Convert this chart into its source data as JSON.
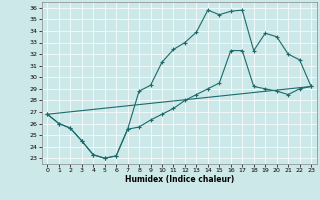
{
  "xlabel": "Humidex (Indice chaleur)",
  "bg_color": "#cde8e8",
  "line_color": "#1a6b6b",
  "xlim": [
    -0.5,
    23.5
  ],
  "ylim": [
    22.5,
    36.5
  ],
  "xticks": [
    0,
    1,
    2,
    3,
    4,
    5,
    6,
    7,
    8,
    9,
    10,
    11,
    12,
    13,
    14,
    15,
    16,
    17,
    18,
    19,
    20,
    21,
    22,
    23
  ],
  "yticks": [
    23,
    24,
    25,
    26,
    27,
    28,
    29,
    30,
    31,
    32,
    33,
    34,
    35,
    36
  ],
  "line1_x": [
    0,
    1,
    2,
    3,
    4,
    5,
    6,
    7,
    8,
    9,
    10,
    11,
    12,
    13,
    14,
    15,
    16,
    17,
    18,
    19,
    20,
    21,
    22,
    23
  ],
  "line1_y": [
    26.8,
    26.0,
    25.6,
    24.5,
    23.3,
    23.0,
    23.2,
    25.5,
    28.8,
    29.3,
    31.3,
    32.4,
    33.0,
    33.9,
    35.8,
    35.4,
    35.7,
    35.8,
    32.3,
    33.8,
    33.5,
    32.0,
    31.5,
    29.2
  ],
  "line2_x": [
    0,
    1,
    2,
    3,
    4,
    5,
    6,
    7,
    8,
    9,
    10,
    11,
    12,
    13,
    14,
    15,
    16,
    17,
    18,
    19,
    20,
    21,
    22,
    23
  ],
  "line2_y": [
    26.8,
    26.0,
    25.6,
    24.5,
    23.3,
    23.0,
    23.2,
    25.5,
    25.7,
    26.3,
    26.8,
    27.3,
    28.0,
    28.5,
    29.0,
    29.5,
    32.3,
    32.3,
    29.2,
    29.0,
    28.8,
    28.5,
    29.0,
    29.2
  ],
  "line3_x": [
    0,
    23
  ],
  "line3_y": [
    26.8,
    29.2
  ]
}
